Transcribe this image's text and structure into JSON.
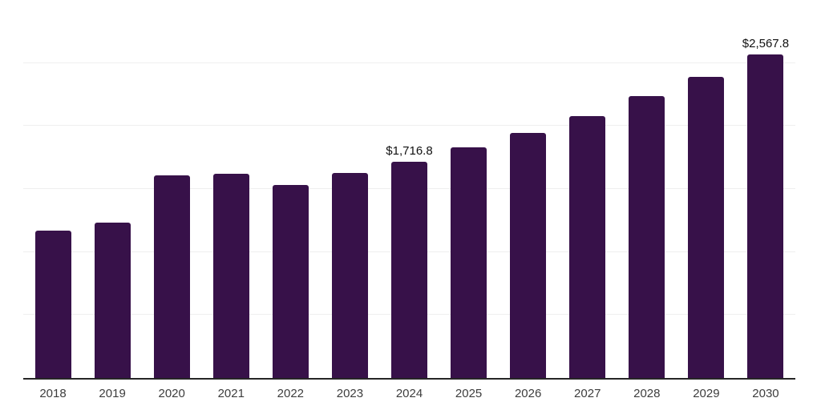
{
  "chart": {
    "background_color": "#ffffff",
    "bar_color": "#371149",
    "gridline_color": "#efefef",
    "axis_line_color": "#262626",
    "tick_label_color": "#3d3d3d",
    "data_label_color": "#111111"
  },
  "chart_data": {
    "type": "bar",
    "title": "",
    "xlabel": "",
    "ylabel": "",
    "categories": [
      "2018",
      "2019",
      "2020",
      "2021",
      "2022",
      "2023",
      "2024",
      "2025",
      "2026",
      "2027",
      "2028",
      "2029",
      "2030"
    ],
    "values": [
      1170,
      1235,
      1605,
      1620,
      1535,
      1625,
      1716.8,
      1830,
      1945,
      2080,
      2235,
      2390,
      2567.8
    ],
    "data_labels": [
      "",
      "",
      "",
      "",
      "",
      "",
      "$1,716.8",
      "",
      "",
      "",
      "",
      "",
      "$2,567.8"
    ],
    "ylim": [
      0,
      3000
    ],
    "grid_step": 500,
    "grid": true,
    "legend": false,
    "legend_position": "none"
  }
}
